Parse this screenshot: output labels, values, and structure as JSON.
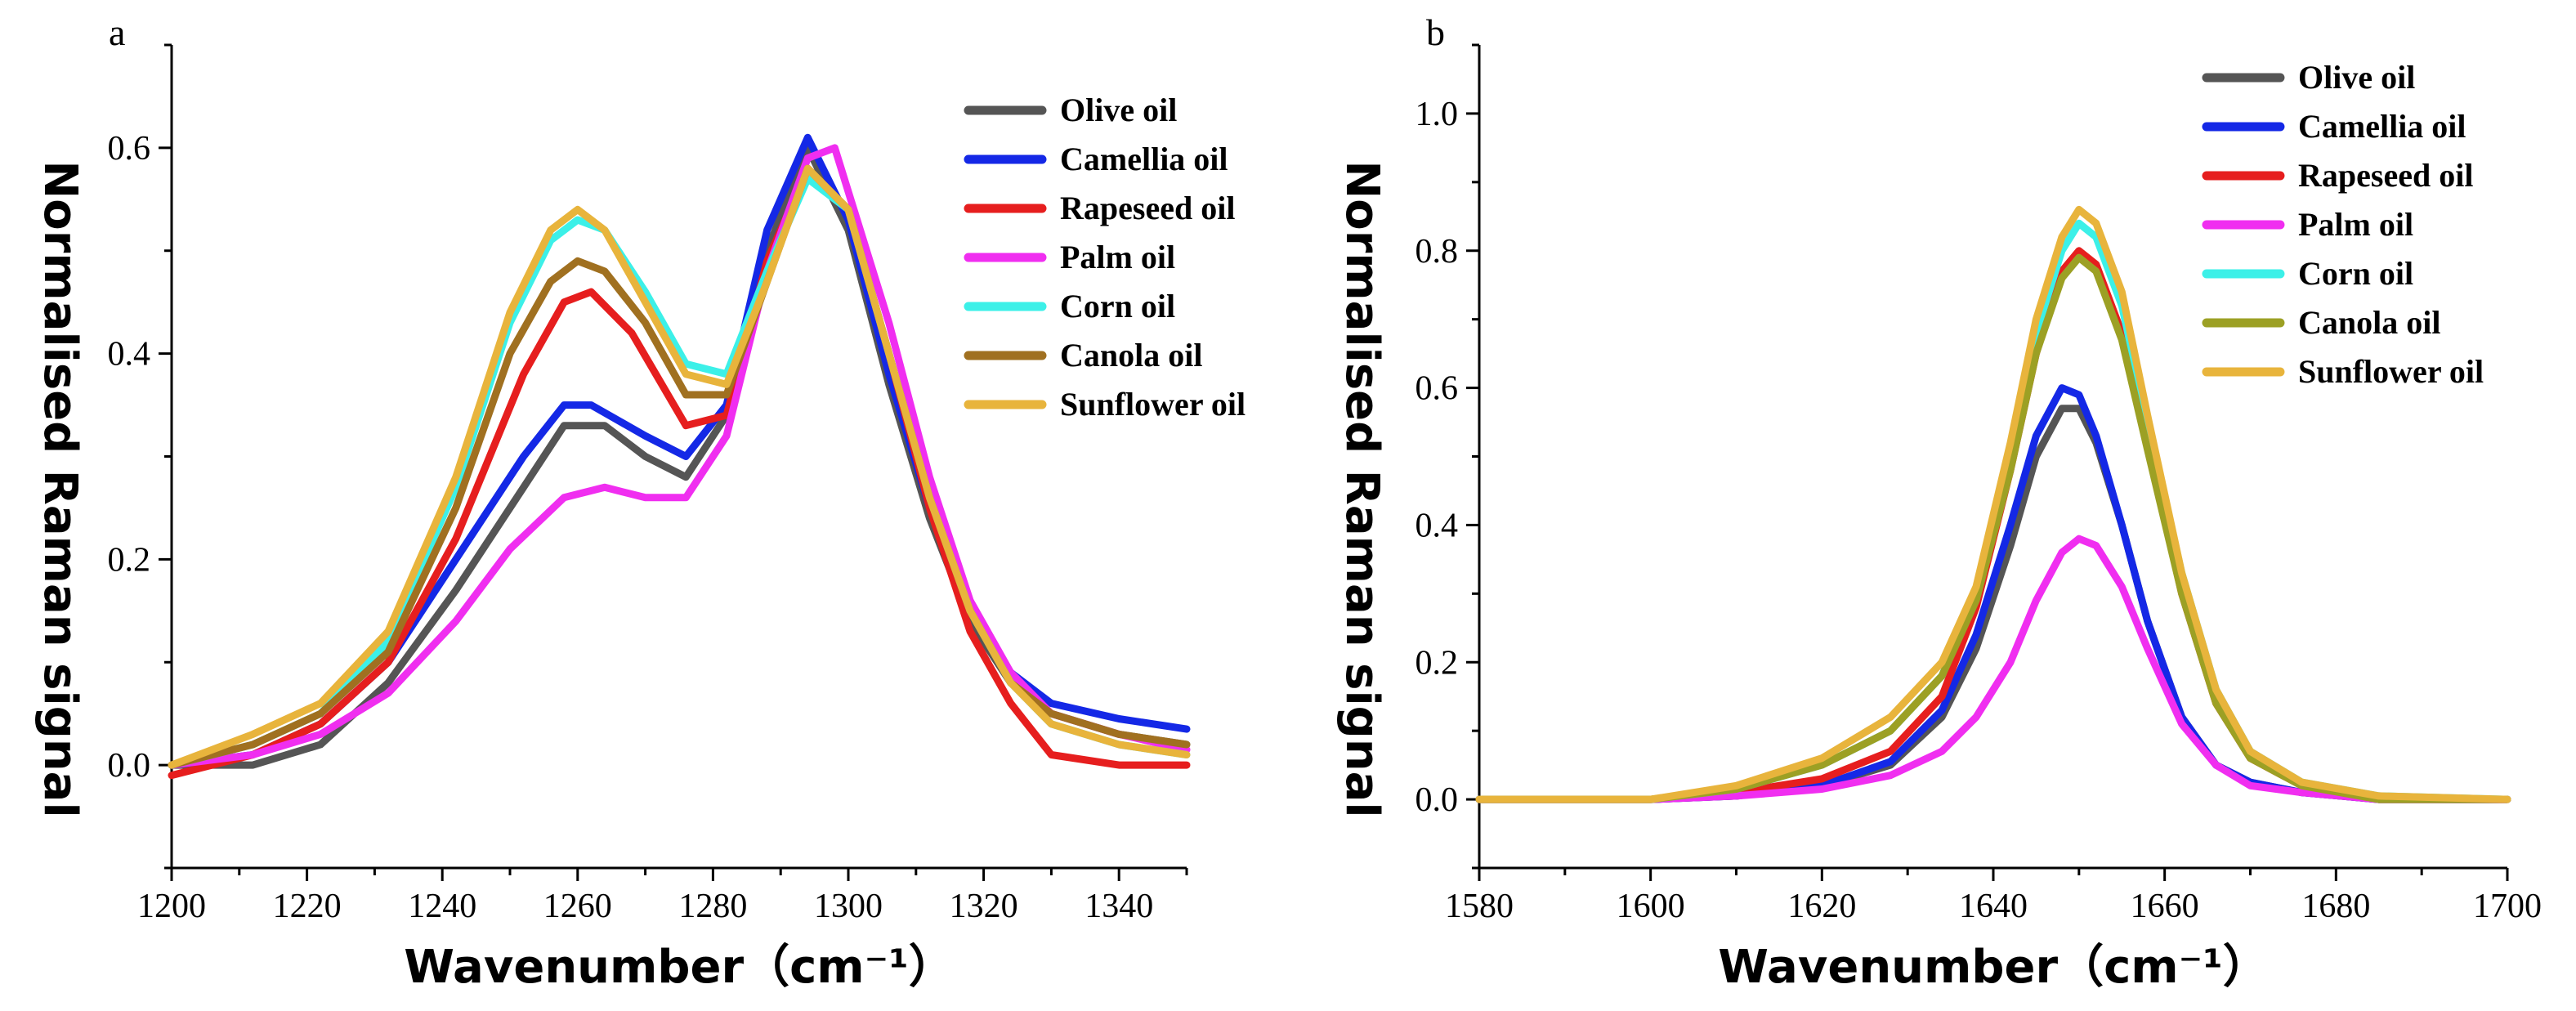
{
  "chart_data": [
    {
      "type": "line",
      "panel": "a",
      "xlabel": "Wavenumber（cm⁻¹）",
      "ylabel": "Normalised Raman signal",
      "xlim": [
        1200,
        1350
      ],
      "ylim": [
        -0.1,
        0.7
      ],
      "xticks": [
        1200,
        1220,
        1240,
        1260,
        1280,
        1300,
        1320,
        1340
      ],
      "yticks": [
        0.0,
        0.2,
        0.4,
        0.6
      ],
      "ytick_labels": [
        "0.0",
        "0.2",
        "0.4",
        "0.6"
      ],
      "legend_position": "top-right",
      "series": [
        {
          "name": "Olive oil",
          "color": "#555555",
          "x": [
            1200,
            1212,
            1222,
            1232,
            1242,
            1252,
            1258,
            1264,
            1270,
            1276,
            1282,
            1288,
            1294,
            1300,
            1306,
            1312,
            1318,
            1324,
            1330,
            1340,
            1350
          ],
          "y": [
            0.0,
            0.0,
            0.02,
            0.08,
            0.17,
            0.27,
            0.33,
            0.33,
            0.3,
            0.28,
            0.34,
            0.5,
            0.6,
            0.52,
            0.37,
            0.24,
            0.14,
            0.08,
            0.05,
            0.03,
            0.02
          ]
        },
        {
          "name": "Camellia oil",
          "color": "#1428e6",
          "x": [
            1200,
            1212,
            1222,
            1232,
            1242,
            1252,
            1258,
            1262,
            1270,
            1276,
            1282,
            1288,
            1294,
            1300,
            1306,
            1312,
            1318,
            1324,
            1330,
            1340,
            1350
          ],
          "y": [
            0.0,
            0.01,
            0.04,
            0.1,
            0.2,
            0.3,
            0.35,
            0.35,
            0.32,
            0.3,
            0.35,
            0.52,
            0.61,
            0.53,
            0.38,
            0.25,
            0.15,
            0.09,
            0.06,
            0.045,
            0.035
          ]
        },
        {
          "name": "Rapeseed oil",
          "color": "#e61e1e",
          "x": [
            1200,
            1212,
            1222,
            1232,
            1242,
            1252,
            1258,
            1262,
            1268,
            1276,
            1282,
            1288,
            1294,
            1300,
            1306,
            1312,
            1318,
            1324,
            1330,
            1340,
            1350
          ],
          "y": [
            -0.01,
            0.01,
            0.04,
            0.1,
            0.22,
            0.38,
            0.45,
            0.46,
            0.42,
            0.33,
            0.34,
            0.49,
            0.58,
            0.54,
            0.4,
            0.25,
            0.13,
            0.06,
            0.01,
            0.0,
            0.0
          ]
        },
        {
          "name": "Palm oil",
          "color": "#f02ef0",
          "x": [
            1200,
            1212,
            1222,
            1232,
            1242,
            1250,
            1258,
            1264,
            1270,
            1276,
            1282,
            1288,
            1294,
            1298,
            1306,
            1312,
            1318,
            1324,
            1330,
            1340,
            1350
          ],
          "y": [
            0.0,
            0.01,
            0.03,
            0.07,
            0.14,
            0.21,
            0.26,
            0.27,
            0.26,
            0.26,
            0.32,
            0.48,
            0.59,
            0.6,
            0.43,
            0.28,
            0.16,
            0.09,
            0.05,
            0.03,
            0.015
          ]
        },
        {
          "name": "Corn oil",
          "color": "#3cf0e8",
          "x": [
            1200,
            1212,
            1222,
            1232,
            1242,
            1250,
            1256,
            1260,
            1264,
            1270,
            1276,
            1282,
            1288,
            1294,
            1300,
            1306,
            1312,
            1318,
            1324,
            1330,
            1340,
            1350
          ],
          "y": [
            0.0,
            0.02,
            0.05,
            0.12,
            0.27,
            0.43,
            0.51,
            0.53,
            0.52,
            0.46,
            0.39,
            0.38,
            0.48,
            0.57,
            0.54,
            0.4,
            0.26,
            0.15,
            0.08,
            0.04,
            0.02,
            0.01
          ]
        },
        {
          "name": "Canola oil",
          "color": "#a07020",
          "x": [
            1200,
            1212,
            1222,
            1232,
            1242,
            1250,
            1256,
            1260,
            1264,
            1270,
            1276,
            1282,
            1288,
            1294,
            1300,
            1306,
            1312,
            1318,
            1324,
            1330,
            1340,
            1350
          ],
          "y": [
            0.0,
            0.02,
            0.05,
            0.11,
            0.25,
            0.4,
            0.47,
            0.49,
            0.48,
            0.43,
            0.36,
            0.36,
            0.47,
            0.58,
            0.54,
            0.4,
            0.26,
            0.15,
            0.08,
            0.05,
            0.03,
            0.02
          ]
        },
        {
          "name": "Sunflower oil",
          "color": "#e8b43c",
          "x": [
            1200,
            1212,
            1222,
            1232,
            1242,
            1250,
            1256,
            1260,
            1264,
            1270,
            1276,
            1282,
            1288,
            1294,
            1300,
            1306,
            1312,
            1318,
            1324,
            1330,
            1340,
            1350
          ],
          "y": [
            0.0,
            0.03,
            0.06,
            0.13,
            0.28,
            0.44,
            0.52,
            0.54,
            0.52,
            0.45,
            0.38,
            0.37,
            0.47,
            0.58,
            0.54,
            0.4,
            0.26,
            0.15,
            0.08,
            0.04,
            0.02,
            0.01
          ]
        }
      ]
    },
    {
      "type": "line",
      "panel": "b",
      "xlabel": "Wavenumber（cm⁻¹）",
      "ylabel": "Normalised Raman signal",
      "xlim": [
        1580,
        1700
      ],
      "ylim": [
        -0.1,
        1.1
      ],
      "xticks": [
        1580,
        1600,
        1620,
        1640,
        1660,
        1680,
        1700
      ],
      "yticks": [
        0.0,
        0.2,
        0.4,
        0.6,
        0.8,
        1.0
      ],
      "ytick_labels": [
        "0.0",
        "0.2",
        "0.4",
        "0.6",
        "0.8",
        "1.0"
      ],
      "legend_position": "top-right",
      "series": [
        {
          "name": "Olive oil",
          "color": "#555555",
          "x": [
            1580,
            1600,
            1610,
            1620,
            1628,
            1634,
            1638,
            1642,
            1645,
            1648,
            1650,
            1652,
            1655,
            1658,
            1662,
            1666,
            1670,
            1676,
            1685,
            1700
          ],
          "y": [
            0.0,
            0.0,
            0.005,
            0.02,
            0.05,
            0.12,
            0.22,
            0.37,
            0.5,
            0.57,
            0.57,
            0.52,
            0.4,
            0.26,
            0.12,
            0.05,
            0.025,
            0.01,
            0.0,
            0.0
          ]
        },
        {
          "name": "Camellia oil",
          "color": "#1428e6",
          "x": [
            1580,
            1600,
            1610,
            1620,
            1628,
            1634,
            1638,
            1642,
            1645,
            1648,
            1650,
            1652,
            1655,
            1658,
            1662,
            1666,
            1670,
            1676,
            1685,
            1700
          ],
          "y": [
            0.0,
            0.0,
            0.005,
            0.02,
            0.055,
            0.13,
            0.24,
            0.4,
            0.53,
            0.6,
            0.59,
            0.53,
            0.4,
            0.26,
            0.12,
            0.05,
            0.025,
            0.01,
            0.0,
            0.0
          ]
        },
        {
          "name": "Rapeseed oil",
          "color": "#e61e1e",
          "x": [
            1580,
            1600,
            1610,
            1620,
            1628,
            1634,
            1638,
            1642,
            1645,
            1648,
            1650,
            1652,
            1655,
            1658,
            1662,
            1666,
            1670,
            1676,
            1685,
            1700
          ],
          "y": [
            0.0,
            0.0,
            0.01,
            0.03,
            0.07,
            0.15,
            0.28,
            0.48,
            0.65,
            0.77,
            0.8,
            0.78,
            0.68,
            0.52,
            0.3,
            0.14,
            0.06,
            0.02,
            0.0,
            0.0
          ]
        },
        {
          "name": "Palm oil",
          "color": "#f02ef0",
          "x": [
            1580,
            1600,
            1610,
            1620,
            1628,
            1634,
            1638,
            1642,
            1645,
            1648,
            1650,
            1652,
            1655,
            1658,
            1662,
            1666,
            1670,
            1676,
            1685,
            1700
          ],
          "y": [
            0.0,
            0.0,
            0.005,
            0.015,
            0.035,
            0.07,
            0.12,
            0.2,
            0.29,
            0.36,
            0.38,
            0.37,
            0.31,
            0.22,
            0.11,
            0.05,
            0.02,
            0.01,
            0.0,
            0.0
          ]
        },
        {
          "name": "Corn oil",
          "color": "#3cf0e8",
          "x": [
            1580,
            1600,
            1610,
            1620,
            1628,
            1634,
            1638,
            1642,
            1645,
            1648,
            1650,
            1652,
            1655,
            1658,
            1662,
            1666,
            1670,
            1676,
            1685,
            1700
          ],
          "y": [
            0.0,
            0.0,
            0.015,
            0.05,
            0.1,
            0.18,
            0.3,
            0.5,
            0.68,
            0.8,
            0.84,
            0.82,
            0.72,
            0.55,
            0.33,
            0.16,
            0.07,
            0.025,
            0.005,
            0.0
          ]
        },
        {
          "name": "Canola oil",
          "color": "#9ca024",
          "x": [
            1580,
            1600,
            1610,
            1620,
            1628,
            1634,
            1638,
            1642,
            1645,
            1648,
            1650,
            1652,
            1655,
            1658,
            1662,
            1666,
            1670,
            1676,
            1685,
            1700
          ],
          "y": [
            0.0,
            0.0,
            0.015,
            0.05,
            0.1,
            0.18,
            0.29,
            0.48,
            0.65,
            0.76,
            0.79,
            0.77,
            0.67,
            0.51,
            0.3,
            0.14,
            0.06,
            0.02,
            0.0,
            0.0
          ]
        },
        {
          "name": "Sunflower oil",
          "color": "#e8b43c",
          "x": [
            1580,
            1600,
            1610,
            1620,
            1628,
            1634,
            1638,
            1642,
            1645,
            1648,
            1650,
            1652,
            1655,
            1658,
            1662,
            1666,
            1670,
            1676,
            1685,
            1700
          ],
          "y": [
            0.0,
            0.0,
            0.02,
            0.06,
            0.12,
            0.2,
            0.31,
            0.52,
            0.7,
            0.82,
            0.86,
            0.84,
            0.74,
            0.56,
            0.33,
            0.16,
            0.07,
            0.025,
            0.005,
            0.0
          ]
        }
      ]
    }
  ]
}
